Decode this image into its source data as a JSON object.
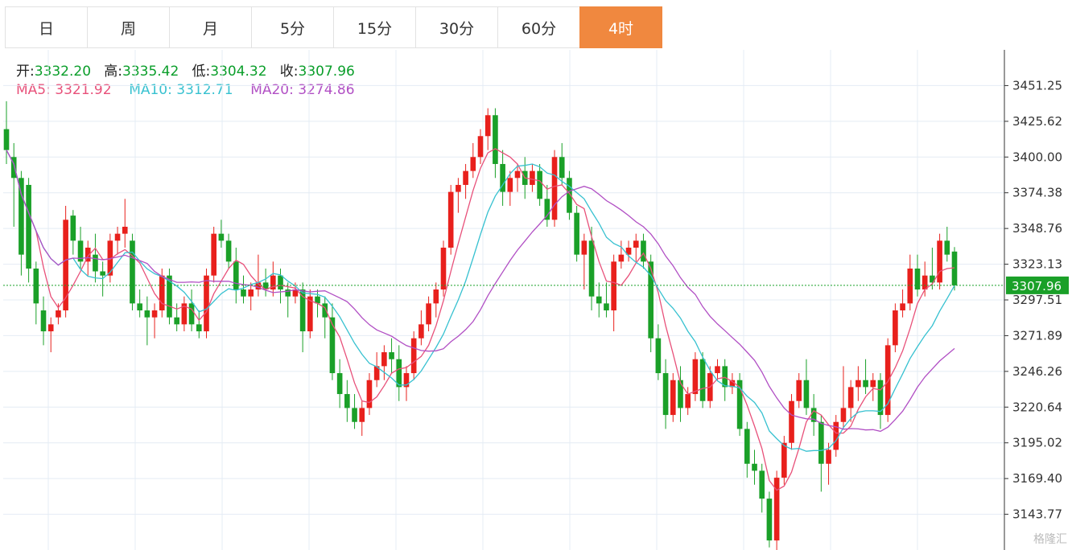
{
  "tabs": [
    {
      "label": "日",
      "active": false
    },
    {
      "label": "周",
      "active": false
    },
    {
      "label": "月",
      "active": false
    },
    {
      "label": "5分",
      "active": false
    },
    {
      "label": "15分",
      "active": false
    },
    {
      "label": "30分",
      "active": false
    },
    {
      "label": "60分",
      "active": false
    },
    {
      "label": "4时",
      "active": true
    }
  ],
  "ohlc_info": {
    "open_label": "开:",
    "open": "3332.20",
    "high_label": "高:",
    "high": "3335.42",
    "low_label": "低:",
    "low": "3304.32",
    "close_label": "收:",
    "close": "3307.96"
  },
  "ma_info": {
    "ma5_label": "MA5:",
    "ma5": "3321.92",
    "ma10_label": "MA10:",
    "ma10": "3312.71",
    "ma20_label": "MA20:",
    "ma20": "3274.86"
  },
  "watermark": "格隆汇",
  "colors": {
    "up": "#e8201c",
    "down": "#1aa028",
    "ma5": "#e8517a",
    "ma10": "#37c1d0",
    "ma20": "#b14fc4",
    "grid": "#e4ecf4",
    "current": "#1aa028"
  },
  "chart_data": {
    "type": "candlestick",
    "y_ticks": [
      "3451.25",
      "3425.62",
      "3400.00",
      "3374.38",
      "3348.76",
      "3323.13",
      "3297.51",
      "3271.89",
      "3246.26",
      "3220.64",
      "3195.02",
      "3169.40",
      "3143.77"
    ],
    "ylim": [
      3118.15,
      3476.87
    ],
    "current_price": "3307.96",
    "candles": [
      [
        3420,
        3440,
        3395,
        3405
      ],
      [
        3400,
        3410,
        3350,
        3385
      ],
      [
        3385,
        3390,
        3315,
        3330
      ],
      [
        3380,
        3385,
        3310,
        3320
      ],
      [
        3320,
        3325,
        3280,
        3295
      ],
      [
        3290,
        3300,
        3265,
        3275
      ],
      [
        3275,
        3285,
        3260,
        3280
      ],
      [
        3285,
        3295,
        3280,
        3290
      ],
      [
        3290,
        3365,
        3285,
        3355
      ],
      [
        3358,
        3362,
        3330,
        3340
      ],
      [
        3340,
        3350,
        3320,
        3325
      ],
      [
        3325,
        3340,
        3315,
        3335
      ],
      [
        3330,
        3345,
        3310,
        3318
      ],
      [
        3318,
        3325,
        3300,
        3315
      ],
      [
        3315,
        3345,
        3310,
        3340
      ],
      [
        3340,
        3350,
        3330,
        3345
      ],
      [
        3345,
        3370,
        3335,
        3350
      ],
      [
        3340,
        3345,
        3290,
        3295
      ],
      [
        3295,
        3305,
        3285,
        3290
      ],
      [
        3290,
        3300,
        3265,
        3285
      ],
      [
        3285,
        3295,
        3270,
        3290
      ],
      [
        3290,
        3320,
        3285,
        3315
      ],
      [
        3315,
        3320,
        3280,
        3285
      ],
      [
        3285,
        3295,
        3275,
        3280
      ],
      [
        3280,
        3300,
        3275,
        3295
      ],
      [
        3295,
        3305,
        3275,
        3280
      ],
      [
        3280,
        3290,
        3270,
        3275
      ],
      [
        3275,
        3320,
        3270,
        3315
      ],
      [
        3315,
        3350,
        3310,
        3345
      ],
      [
        3345,
        3355,
        3335,
        3340
      ],
      [
        3340,
        3345,
        3320,
        3325
      ],
      [
        3325,
        3335,
        3295,
        3305
      ],
      [
        3305,
        3315,
        3295,
        3300
      ],
      [
        3300,
        3310,
        3290,
        3305
      ],
      [
        3305,
        3330,
        3300,
        3310
      ],
      [
        3310,
        3320,
        3300,
        3305
      ],
      [
        3305,
        3325,
        3300,
        3315
      ],
      [
        3315,
        3320,
        3295,
        3305
      ],
      [
        3305,
        3310,
        3285,
        3300
      ],
      [
        3300,
        3310,
        3295,
        3305
      ],
      [
        3305,
        3310,
        3260,
        3275
      ],
      [
        3275,
        3305,
        3270,
        3300
      ],
      [
        3300,
        3305,
        3285,
        3295
      ],
      [
        3295,
        3300,
        3270,
        3285
      ],
      [
        3285,
        3295,
        3240,
        3245
      ],
      [
        3245,
        3255,
        3220,
        3230
      ],
      [
        3230,
        3240,
        3210,
        3220
      ],
      [
        3220,
        3230,
        3205,
        3210
      ],
      [
        3210,
        3225,
        3200,
        3220
      ],
      [
        3220,
        3245,
        3215,
        3240
      ],
      [
        3240,
        3260,
        3235,
        3250
      ],
      [
        3250,
        3265,
        3240,
        3260
      ],
      [
        3260,
        3270,
        3245,
        3255
      ],
      [
        3255,
        3265,
        3225,
        3235
      ],
      [
        3235,
        3250,
        3225,
        3245
      ],
      [
        3245,
        3275,
        3240,
        3270
      ],
      [
        3270,
        3290,
        3265,
        3280
      ],
      [
        3280,
        3300,
        3275,
        3295
      ],
      [
        3295,
        3310,
        3285,
        3305
      ],
      [
        3305,
        3340,
        3300,
        3335
      ],
      [
        3335,
        3380,
        3330,
        3375
      ],
      [
        3375,
        3385,
        3360,
        3380
      ],
      [
        3380,
        3395,
        3370,
        3390
      ],
      [
        3390,
        3410,
        3385,
        3400
      ],
      [
        3400,
        3420,
        3395,
        3415
      ],
      [
        3415,
        3435,
        3405,
        3430
      ],
      [
        3430,
        3435,
        3385,
        3395
      ],
      [
        3395,
        3405,
        3365,
        3375
      ],
      [
        3375,
        3390,
        3365,
        3385
      ],
      [
        3385,
        3395,
        3375,
        3390
      ],
      [
        3390,
        3400,
        3370,
        3380
      ],
      [
        3380,
        3395,
        3375,
        3390
      ],
      [
        3390,
        3395,
        3365,
        3370
      ],
      [
        3370,
        3380,
        3350,
        3355
      ],
      [
        3355,
        3405,
        3350,
        3400
      ],
      [
        3400,
        3410,
        3380,
        3385
      ],
      [
        3385,
        3390,
        3355,
        3360
      ],
      [
        3360,
        3365,
        3325,
        3330
      ],
      [
        3330,
        3345,
        3305,
        3340
      ],
      [
        3340,
        3350,
        3290,
        3300
      ],
      [
        3300,
        3310,
        3285,
        3295
      ],
      [
        3295,
        3310,
        3285,
        3290
      ],
      [
        3290,
        3330,
        3275,
        3325
      ],
      [
        3325,
        3340,
        3320,
        3330
      ],
      [
        3330,
        3340,
        3325,
        3335
      ],
      [
        3335,
        3345,
        3325,
        3340
      ],
      [
        3340,
        3345,
        3320,
        3325
      ],
      [
        3325,
        3330,
        3260,
        3270
      ],
      [
        3270,
        3280,
        3240,
        3245
      ],
      [
        3245,
        3255,
        3205,
        3215
      ],
      [
        3215,
        3245,
        3210,
        3240
      ],
      [
        3240,
        3250,
        3210,
        3220
      ],
      [
        3220,
        3235,
        3215,
        3230
      ],
      [
        3230,
        3260,
        3225,
        3255
      ],
      [
        3255,
        3260,
        3220,
        3225
      ],
      [
        3225,
        3250,
        3220,
        3245
      ],
      [
        3245,
        3255,
        3240,
        3250
      ],
      [
        3250,
        3255,
        3225,
        3235
      ],
      [
        3235,
        3245,
        3230,
        3240
      ],
      [
        3240,
        3245,
        3200,
        3205
      ],
      [
        3205,
        3210,
        3170,
        3180
      ],
      [
        3180,
        3190,
        3165,
        3175
      ],
      [
        3175,
        3180,
        3145,
        3155
      ],
      [
        3155,
        3160,
        3120,
        3125
      ],
      [
        3125,
        3175,
        3118,
        3170
      ],
      [
        3170,
        3200,
        3165,
        3195
      ],
      [
        3195,
        3230,
        3190,
        3225
      ],
      [
        3225,
        3245,
        3220,
        3240
      ],
      [
        3240,
        3255,
        3215,
        3220
      ],
      [
        3220,
        3230,
        3200,
        3210
      ],
      [
        3210,
        3215,
        3160,
        3180
      ],
      [
        3180,
        3195,
        3165,
        3190
      ],
      [
        3190,
        3215,
        3185,
        3210
      ],
      [
        3210,
        3250,
        3205,
        3220
      ],
      [
        3220,
        3240,
        3210,
        3235
      ],
      [
        3235,
        3250,
        3225,
        3240
      ],
      [
        3240,
        3255,
        3230,
        3235
      ],
      [
        3235,
        3245,
        3225,
        3240
      ],
      [
        3240,
        3245,
        3205,
        3215
      ],
      [
        3215,
        3270,
        3210,
        3265
      ],
      [
        3265,
        3295,
        3260,
        3290
      ],
      [
        3290,
        3305,
        3285,
        3295
      ],
      [
        3295,
        3330,
        3290,
        3320
      ],
      [
        3320,
        3330,
        3300,
        3305
      ],
      [
        3305,
        3325,
        3300,
        3315
      ],
      [
        3315,
        3335,
        3305,
        3310
      ],
      [
        3310,
        3345,
        3305,
        3340
      ],
      [
        3340,
        3350,
        3325,
        3330
      ],
      [
        3332.2,
        3335.42,
        3304.32,
        3307.96
      ]
    ]
  }
}
